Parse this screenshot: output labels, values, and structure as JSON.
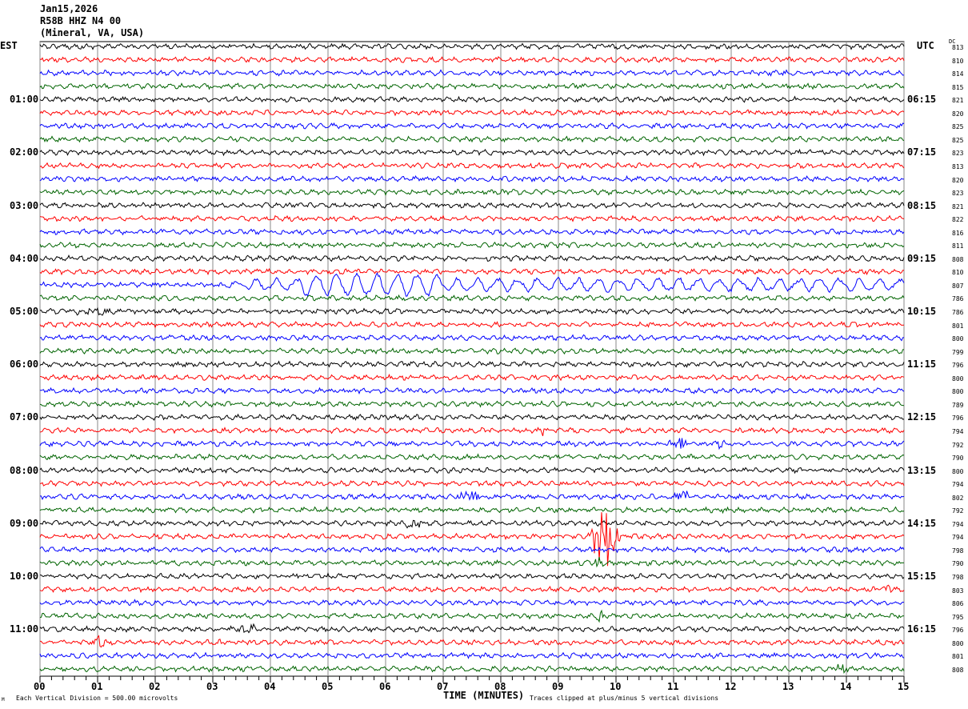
{
  "header": {
    "date": "Jan15,2026",
    "station": "R58B HHZ N4 00",
    "location": "(Mineral, VA, USA)"
  },
  "left_axis_label": "EST",
  "right_axis_label": "UTC",
  "dc_label": "DC",
  "footer": {
    "scale": "Each Vertical Division =  500.00 microvolts",
    "xlabel": "TIME (MINUTES)",
    "clip_note": "Traces clipped at plus/minus 5 vertical divisions",
    "corner_mark": "M"
  },
  "chart_data": {
    "type": "line",
    "title": "Jan15,2026 R58B HHZ N4 00 (Mineral, VA, USA)",
    "xlabel": "TIME (MINUTES)",
    "xlim": [
      0,
      15
    ],
    "x_ticks": [
      "00",
      "01",
      "02",
      "03",
      "04",
      "05",
      "06",
      "07",
      "08",
      "09",
      "10",
      "11",
      "12",
      "13",
      "14",
      "15"
    ],
    "grid": true,
    "trace_colors": [
      "#000000",
      "#ff0000",
      "#0000ff",
      "#006400"
    ],
    "traces_per_hour": 4,
    "left_hour_labels": [
      "01:00",
      "02:00",
      "03:00",
      "04:00",
      "05:00",
      "06:00",
      "07:00",
      "08:00",
      "09:00",
      "10:00",
      "11:00"
    ],
    "right_hour_labels": [
      "06:15",
      "07:15",
      "08:15",
      "09:15",
      "10:15",
      "11:15",
      "12:15",
      "13:15",
      "14:15",
      "15:15",
      "16:15"
    ],
    "dc_offsets": [
      813,
      810,
      814,
      815,
      821,
      820,
      825,
      825,
      823,
      813,
      820,
      823,
      821,
      822,
      816,
      811,
      808,
      810,
      807,
      786,
      786,
      801,
      800,
      799,
      796,
      800,
      800,
      789,
      796,
      794,
      792,
      790,
      800,
      794,
      802,
      792,
      794,
      794,
      798,
      790,
      798,
      803,
      806,
      795,
      796,
      800,
      801,
      808
    ],
    "events": [
      {
        "trace": 18,
        "start_min": 3,
        "end_min": 15,
        "amplitude": "large",
        "type": "long-period"
      },
      {
        "trace": 20,
        "start_min": 0.4,
        "end_min": 1.6,
        "amplitude": "small"
      },
      {
        "trace": 29,
        "start_min": 8.6,
        "end_min": 8.8,
        "amplitude": "small"
      },
      {
        "trace": 30,
        "start_min": 10.9,
        "end_min": 11.3,
        "amplitude": "medium"
      },
      {
        "trace": 30,
        "start_min": 11.7,
        "end_min": 11.9,
        "amplitude": "medium"
      },
      {
        "trace": 31,
        "start_min": 7.15,
        "end_min": 7.3,
        "amplitude": "medium"
      },
      {
        "trace": 34,
        "start_min": 7.2,
        "end_min": 7.7,
        "amplitude": "medium"
      },
      {
        "trace": 34,
        "start_min": 10.9,
        "end_min": 11.4,
        "amplitude": "medium"
      },
      {
        "trace": 36,
        "start_min": 6.25,
        "end_min": 6.7,
        "amplitude": "medium"
      },
      {
        "trace": 37,
        "start_min": 9.5,
        "end_min": 10.1,
        "amplitude": "clipped"
      },
      {
        "trace": 39,
        "start_min": 9.6,
        "end_min": 9.8,
        "amplitude": "medium"
      },
      {
        "trace": 41,
        "start_min": 14.65,
        "end_min": 14.8,
        "amplitude": "medium"
      },
      {
        "trace": 43,
        "start_min": 9.6,
        "end_min": 9.8,
        "amplitude": "medium"
      },
      {
        "trace": 44,
        "start_min": 3.3,
        "end_min": 3.8,
        "amplitude": "medium"
      },
      {
        "trace": 45,
        "start_min": 0.85,
        "end_min": 1.2,
        "amplitude": "medium"
      },
      {
        "trace": 45,
        "start_min": 3.05,
        "end_min": 3.2,
        "amplitude": "small"
      },
      {
        "trace": 47,
        "start_min": 13.75,
        "end_min": 14.1,
        "amplitude": "medium"
      }
    ]
  }
}
